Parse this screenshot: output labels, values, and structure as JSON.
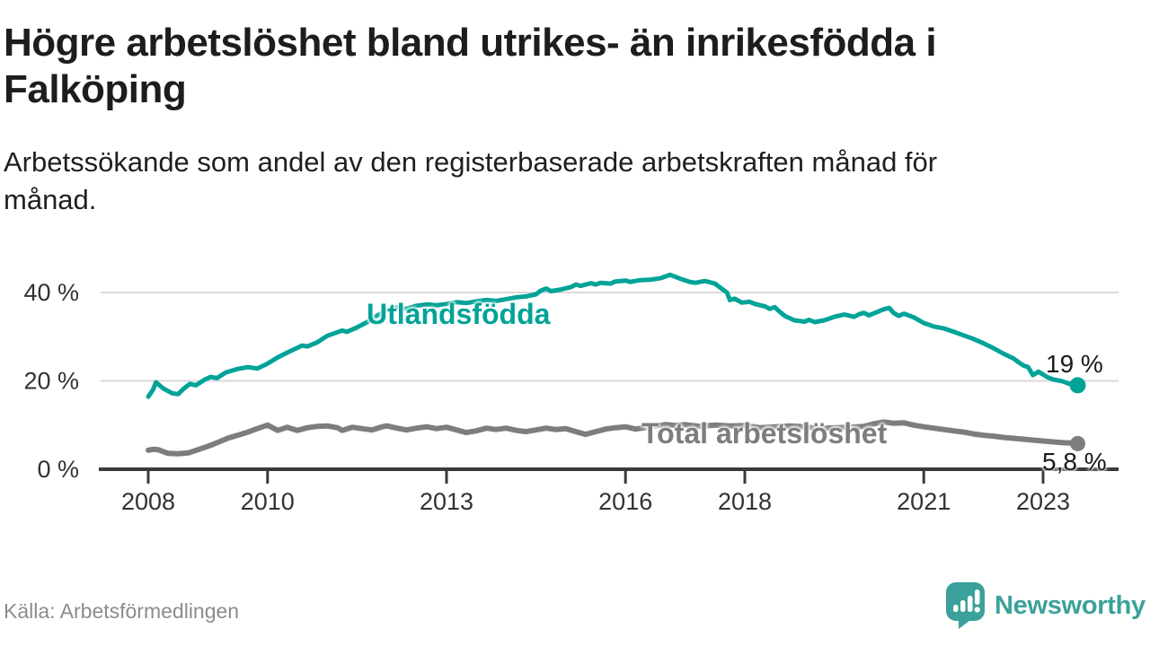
{
  "page": {
    "background": "#ffffff"
  },
  "chart_data": {
    "type": "line",
    "title": "Högre arbetslöshet bland utrikes- än inrikesfödda i Falköping",
    "title_lines": [
      "Högre arbetslöshet bland utrikes- än inrikesfödda i",
      "Falköping"
    ],
    "subtitle": "Arbetssökande som andel av den registerbaserade arbetskraften månad för månad.",
    "subtitle_lines": [
      "Arbetssökande som andel av den registerbaserade arbetskraften månad för",
      "månad."
    ],
    "source": "Källa: Arbetsförmedlingen",
    "x_unit": "year (monthly observations)",
    "xlim": [
      2007.2,
      2024.3
    ],
    "ylim": [
      0,
      45
    ],
    "grid": "horizontal gridlines at 20 and 40, dark baseline at 0",
    "legend_position": "inline labels next to lines",
    "grid_color": "#d9d9d9",
    "axis_color": "#3a3a3a",
    "tick_label_color": "#323232",
    "y_ticks": [
      {
        "value": 0,
        "label": "0 %"
      },
      {
        "value": 20,
        "label": "20 %"
      },
      {
        "value": 40,
        "label": "40 %"
      }
    ],
    "x_ticks": [
      {
        "value": 2008,
        "label": "2008"
      },
      {
        "value": 2010,
        "label": "2010"
      },
      {
        "value": 2013,
        "label": "2013"
      },
      {
        "value": 2016,
        "label": "2016"
      },
      {
        "value": 2018,
        "label": "2018"
      },
      {
        "value": 2021,
        "label": "2021"
      },
      {
        "value": 2023,
        "label": "2023"
      }
    ],
    "series": [
      {
        "name": "Utlandsfödda",
        "color": "#00a398",
        "line_width": 5,
        "end_value_label": "19 %",
        "end_value": 19,
        "points": [
          [
            2008.0,
            16.4
          ],
          [
            2008.08,
            18.0
          ],
          [
            2008.13,
            19.7
          ],
          [
            2008.25,
            18.3
          ],
          [
            2008.4,
            17.2
          ],
          [
            2008.5,
            17.0
          ],
          [
            2008.6,
            18.3
          ],
          [
            2008.7,
            19.3
          ],
          [
            2008.8,
            19.0
          ],
          [
            2008.95,
            20.3
          ],
          [
            2009.05,
            20.9
          ],
          [
            2009.15,
            20.6
          ],
          [
            2009.3,
            21.9
          ],
          [
            2009.5,
            22.7
          ],
          [
            2009.67,
            23.1
          ],
          [
            2009.83,
            22.8
          ],
          [
            2010.0,
            23.9
          ],
          [
            2010.17,
            25.3
          ],
          [
            2010.33,
            26.4
          ],
          [
            2010.5,
            27.5
          ],
          [
            2010.58,
            28.0
          ],
          [
            2010.67,
            27.8
          ],
          [
            2010.83,
            28.7
          ],
          [
            2011.0,
            30.2
          ],
          [
            2011.17,
            31.0
          ],
          [
            2011.25,
            31.4
          ],
          [
            2011.33,
            31.1
          ],
          [
            2011.5,
            32.1
          ],
          [
            2011.67,
            33.3
          ],
          [
            2011.83,
            34.7
          ],
          [
            2012.0,
            36.0
          ],
          [
            2012.17,
            36.6
          ],
          [
            2012.33,
            36.3
          ],
          [
            2012.5,
            37.0
          ],
          [
            2012.67,
            37.3
          ],
          [
            2012.83,
            37.1
          ],
          [
            2013.0,
            37.4
          ],
          [
            2013.17,
            37.8
          ],
          [
            2013.33,
            37.6
          ],
          [
            2013.5,
            38.0
          ],
          [
            2013.67,
            38.3
          ],
          [
            2013.83,
            38.1
          ],
          [
            2014.0,
            38.5
          ],
          [
            2014.17,
            38.9
          ],
          [
            2014.33,
            39.1
          ],
          [
            2014.5,
            39.6
          ],
          [
            2014.58,
            40.4
          ],
          [
            2014.67,
            40.9
          ],
          [
            2014.75,
            40.3
          ],
          [
            2014.92,
            40.7
          ],
          [
            2015.08,
            41.2
          ],
          [
            2015.17,
            41.8
          ],
          [
            2015.25,
            41.5
          ],
          [
            2015.42,
            42.1
          ],
          [
            2015.5,
            41.8
          ],
          [
            2015.58,
            42.2
          ],
          [
            2015.75,
            42.0
          ],
          [
            2015.83,
            42.5
          ],
          [
            2016.0,
            42.7
          ],
          [
            2016.08,
            42.4
          ],
          [
            2016.25,
            42.8
          ],
          [
            2016.42,
            42.9
          ],
          [
            2016.58,
            43.2
          ],
          [
            2016.75,
            44.0
          ],
          [
            2016.92,
            43.1
          ],
          [
            2017.08,
            42.4
          ],
          [
            2017.17,
            42.2
          ],
          [
            2017.33,
            42.6
          ],
          [
            2017.5,
            42.0
          ],
          [
            2017.6,
            41.0
          ],
          [
            2017.7,
            40.0
          ],
          [
            2017.75,
            38.3
          ],
          [
            2017.83,
            38.6
          ],
          [
            2017.95,
            37.7
          ],
          [
            2018.08,
            37.9
          ],
          [
            2018.17,
            37.4
          ],
          [
            2018.33,
            36.9
          ],
          [
            2018.42,
            36.3
          ],
          [
            2018.5,
            36.7
          ],
          [
            2018.58,
            35.7
          ],
          [
            2018.67,
            34.7
          ],
          [
            2018.83,
            33.7
          ],
          [
            2019.0,
            33.4
          ],
          [
            2019.08,
            33.8
          ],
          [
            2019.17,
            33.3
          ],
          [
            2019.33,
            33.7
          ],
          [
            2019.5,
            34.5
          ],
          [
            2019.67,
            35.0
          ],
          [
            2019.83,
            34.5
          ],
          [
            2019.92,
            35.1
          ],
          [
            2020.0,
            35.4
          ],
          [
            2020.08,
            34.8
          ],
          [
            2020.17,
            35.3
          ],
          [
            2020.33,
            36.2
          ],
          [
            2020.42,
            36.5
          ],
          [
            2020.5,
            35.3
          ],
          [
            2020.58,
            34.7
          ],
          [
            2020.67,
            35.2
          ],
          [
            2020.83,
            34.4
          ],
          [
            2021.0,
            33.1
          ],
          [
            2021.17,
            32.3
          ],
          [
            2021.33,
            31.9
          ],
          [
            2021.5,
            31.1
          ],
          [
            2021.67,
            30.3
          ],
          [
            2021.83,
            29.5
          ],
          [
            2022.0,
            28.5
          ],
          [
            2022.17,
            27.4
          ],
          [
            2022.33,
            26.2
          ],
          [
            2022.5,
            25.1
          ],
          [
            2022.58,
            24.3
          ],
          [
            2022.67,
            23.5
          ],
          [
            2022.75,
            23.1
          ],
          [
            2022.83,
            21.3
          ],
          [
            2022.92,
            22.1
          ],
          [
            2023.08,
            20.8
          ],
          [
            2023.17,
            20.3
          ],
          [
            2023.33,
            19.9
          ],
          [
            2023.42,
            19.4
          ],
          [
            2023.58,
            19.0
          ]
        ]
      },
      {
        "name": "Total arbetslöshet",
        "color": "#7d7d7d",
        "line_width": 6,
        "end_value_label": "5,8 %",
        "end_value": 5.8,
        "points": [
          [
            2008.0,
            4.3
          ],
          [
            2008.08,
            4.5
          ],
          [
            2008.17,
            4.4
          ],
          [
            2008.25,
            4.0
          ],
          [
            2008.33,
            3.6
          ],
          [
            2008.5,
            3.5
          ],
          [
            2008.67,
            3.7
          ],
          [
            2008.83,
            4.4
          ],
          [
            2009.0,
            5.2
          ],
          [
            2009.17,
            6.1
          ],
          [
            2009.33,
            7.0
          ],
          [
            2009.5,
            7.7
          ],
          [
            2009.67,
            8.4
          ],
          [
            2009.83,
            9.2
          ],
          [
            2010.0,
            10.0
          ],
          [
            2010.17,
            8.8
          ],
          [
            2010.33,
            9.5
          ],
          [
            2010.5,
            8.8
          ],
          [
            2010.67,
            9.4
          ],
          [
            2010.83,
            9.7
          ],
          [
            2011.0,
            9.8
          ],
          [
            2011.17,
            9.4
          ],
          [
            2011.25,
            8.8
          ],
          [
            2011.42,
            9.5
          ],
          [
            2011.58,
            9.2
          ],
          [
            2011.75,
            8.9
          ],
          [
            2011.92,
            9.6
          ],
          [
            2012.0,
            9.8
          ],
          [
            2012.17,
            9.3
          ],
          [
            2012.33,
            8.9
          ],
          [
            2012.5,
            9.3
          ],
          [
            2012.67,
            9.6
          ],
          [
            2012.83,
            9.2
          ],
          [
            2013.0,
            9.5
          ],
          [
            2013.17,
            8.9
          ],
          [
            2013.33,
            8.3
          ],
          [
            2013.5,
            8.7
          ],
          [
            2013.67,
            9.3
          ],
          [
            2013.83,
            9.0
          ],
          [
            2014.0,
            9.3
          ],
          [
            2014.17,
            8.8
          ],
          [
            2014.33,
            8.5
          ],
          [
            2014.5,
            8.9
          ],
          [
            2014.67,
            9.3
          ],
          [
            2014.83,
            9.0
          ],
          [
            2015.0,
            9.2
          ],
          [
            2015.17,
            8.5
          ],
          [
            2015.33,
            7.9
          ],
          [
            2015.5,
            8.5
          ],
          [
            2015.67,
            9.1
          ],
          [
            2015.83,
            9.4
          ],
          [
            2016.0,
            9.6
          ],
          [
            2016.17,
            9.1
          ],
          [
            2016.33,
            9.4
          ],
          [
            2016.5,
            9.8
          ],
          [
            2016.67,
            10.1
          ],
          [
            2016.83,
            9.9
          ],
          [
            2017.0,
            10.1
          ],
          [
            2017.25,
            9.7
          ],
          [
            2017.5,
            10.0
          ],
          [
            2017.75,
            9.8
          ],
          [
            2018.0,
            9.9
          ],
          [
            2018.25,
            9.4
          ],
          [
            2018.5,
            9.6
          ],
          [
            2018.75,
            9.8
          ],
          [
            2019.0,
            9.6
          ],
          [
            2019.25,
            9.2
          ],
          [
            2019.5,
            9.4
          ],
          [
            2019.75,
            9.5
          ],
          [
            2020.0,
            9.7
          ],
          [
            2020.17,
            10.3
          ],
          [
            2020.33,
            10.7
          ],
          [
            2020.5,
            10.4
          ],
          [
            2020.67,
            10.5
          ],
          [
            2020.83,
            10.0
          ],
          [
            2021.0,
            9.6
          ],
          [
            2021.17,
            9.3
          ],
          [
            2021.33,
            9.0
          ],
          [
            2021.5,
            8.7
          ],
          [
            2021.67,
            8.4
          ],
          [
            2021.83,
            8.0
          ],
          [
            2022.0,
            7.7
          ],
          [
            2022.17,
            7.5
          ],
          [
            2022.33,
            7.2
          ],
          [
            2022.5,
            7.0
          ],
          [
            2022.67,
            6.8
          ],
          [
            2022.83,
            6.6
          ],
          [
            2023.0,
            6.4
          ],
          [
            2023.17,
            6.2
          ],
          [
            2023.33,
            6.0
          ],
          [
            2023.5,
            5.9
          ],
          [
            2023.58,
            5.8
          ]
        ]
      }
    ]
  },
  "branding": {
    "logo_text": "Newsworthy",
    "logo_color": "#3ba19a",
    "logo_icon": "speech-bubble-bar-chart-icon"
  }
}
